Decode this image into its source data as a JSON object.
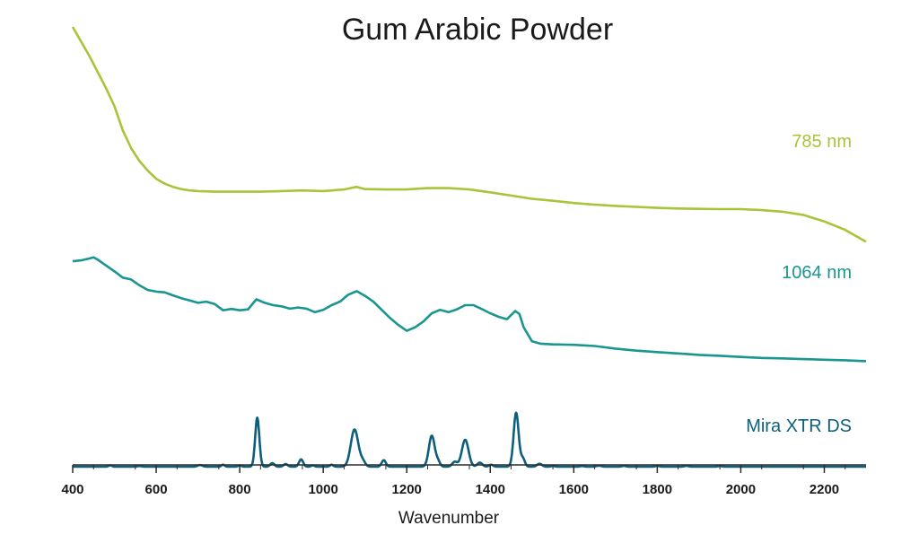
{
  "chart_data": {
    "type": "line",
    "title": "Gum Arabic Powder",
    "xlabel": "Wavenumber",
    "ylabel": "",
    "xlim": [
      400,
      2300
    ],
    "xticks": [
      400,
      600,
      800,
      1000,
      1200,
      1400,
      1600,
      1800,
      2000,
      2200
    ],
    "y_axis_shown": false,
    "grid": false,
    "legend": "inline-right",
    "series": [
      {
        "name": "785 nm",
        "color": "#a8c43a",
        "x": [
          400,
          420,
          440,
          460,
          480,
          500,
          520,
          540,
          560,
          580,
          600,
          620,
          640,
          660,
          680,
          700,
          720,
          740,
          760,
          780,
          800,
          850,
          900,
          950,
          1000,
          1050,
          1080,
          1100,
          1150,
          1200,
          1250,
          1300,
          1350,
          1400,
          1450,
          1500,
          1550,
          1600,
          1650,
          1700,
          1750,
          1800,
          1850,
          1900,
          1950,
          2000,
          2050,
          2100,
          2150,
          2200,
          2250,
          2300
        ],
        "y": [
          1.0,
          0.955,
          0.91,
          0.86,
          0.81,
          0.755,
          0.68,
          0.625,
          0.585,
          0.555,
          0.53,
          0.515,
          0.505,
          0.498,
          0.494,
          0.492,
          0.491,
          0.49,
          0.49,
          0.49,
          0.49,
          0.49,
          0.492,
          0.494,
          0.492,
          0.497,
          0.505,
          0.498,
          0.497,
          0.497,
          0.501,
          0.501,
          0.497,
          0.488,
          0.478,
          0.468,
          0.462,
          0.455,
          0.45,
          0.446,
          0.443,
          0.44,
          0.438,
          0.437,
          0.436,
          0.436,
          0.433,
          0.428,
          0.418,
          0.398,
          0.372,
          0.335
        ]
      },
      {
        "name": "1064 nm",
        "color": "#1a9590",
        "x": [
          400,
          420,
          440,
          450,
          460,
          480,
          500,
          520,
          540,
          560,
          580,
          600,
          620,
          640,
          660,
          680,
          700,
          720,
          740,
          760,
          780,
          800,
          820,
          840,
          860,
          880,
          900,
          920,
          940,
          960,
          980,
          1000,
          1020,
          1040,
          1060,
          1080,
          1100,
          1120,
          1140,
          1160,
          1180,
          1200,
          1220,
          1240,
          1260,
          1280,
          1300,
          1320,
          1340,
          1360,
          1380,
          1400,
          1420,
          1440,
          1460,
          1470,
          1480,
          1500,
          1520,
          1550,
          1600,
          1650,
          1700,
          1750,
          1800,
          1850,
          1900,
          1950,
          2000,
          2050,
          2100,
          2150,
          2200,
          2250,
          2300
        ],
        "y": [
          0.488,
          0.492,
          0.5,
          0.505,
          0.495,
          0.47,
          0.445,
          0.418,
          0.41,
          0.385,
          0.365,
          0.358,
          0.355,
          0.342,
          0.33,
          0.32,
          0.31,
          0.315,
          0.305,
          0.278,
          0.284,
          0.278,
          0.282,
          0.325,
          0.31,
          0.3,
          0.295,
          0.285,
          0.29,
          0.285,
          0.27,
          0.28,
          0.3,
          0.315,
          0.345,
          0.36,
          0.34,
          0.315,
          0.28,
          0.245,
          0.215,
          0.19,
          0.205,
          0.23,
          0.265,
          0.28,
          0.27,
          0.282,
          0.3,
          0.3,
          0.283,
          0.265,
          0.25,
          0.24,
          0.275,
          0.262,
          0.205,
          0.145,
          0.135,
          0.132,
          0.13,
          0.125,
          0.114,
          0.105,
          0.099,
          0.093,
          0.087,
          0.083,
          0.078,
          0.074,
          0.072,
          0.069,
          0.066,
          0.064,
          0.06
        ]
      },
      {
        "name": "Mira XTR DS",
        "color": "#0d5f7c",
        "peaks": [
          {
            "center": 490,
            "height": 0.008,
            "width": 4
          },
          {
            "center": 560,
            "height": 0.004,
            "width": 5
          },
          {
            "center": 705,
            "height": 0.01,
            "width": 6
          },
          {
            "center": 760,
            "height": 0.012,
            "width": 4
          },
          {
            "center": 800,
            "height": 0.008,
            "width": 4
          },
          {
            "center": 842,
            "height": 0.3,
            "width": 5
          },
          {
            "center": 878,
            "height": 0.022,
            "width": 5
          },
          {
            "center": 910,
            "height": 0.016,
            "width": 5
          },
          {
            "center": 947,
            "height": 0.045,
            "width": 5
          },
          {
            "center": 975,
            "height": 0.008,
            "width": 4
          },
          {
            "center": 1020,
            "height": 0.012,
            "width": 4
          },
          {
            "center": 1075,
            "height": 0.228,
            "width": 9
          },
          {
            "center": 1095,
            "height": 0.03,
            "width": 6
          },
          {
            "center": 1145,
            "height": 0.04,
            "width": 5
          },
          {
            "center": 1260,
            "height": 0.19,
            "width": 7
          },
          {
            "center": 1275,
            "height": 0.03,
            "width": 5
          },
          {
            "center": 1315,
            "height": 0.03,
            "width": 6
          },
          {
            "center": 1340,
            "height": 0.165,
            "width": 8
          },
          {
            "center": 1375,
            "height": 0.025,
            "width": 6
          },
          {
            "center": 1402,
            "height": 0.012,
            "width": 5
          },
          {
            "center": 1462,
            "height": 0.33,
            "width": 6
          },
          {
            "center": 1478,
            "height": 0.05,
            "width": 5
          },
          {
            "center": 1518,
            "height": 0.018,
            "width": 6
          },
          {
            "center": 1550,
            "height": 0.004,
            "width": 5
          },
          {
            "center": 1620,
            "height": 0.004,
            "width": 5
          },
          {
            "center": 1660,
            "height": 0.006,
            "width": 6
          },
          {
            "center": 1720,
            "height": 0.005,
            "width": 5
          },
          {
            "center": 1800,
            "height": 0.005,
            "width": 5
          },
          {
            "center": 1870,
            "height": 0.005,
            "width": 5
          },
          {
            "center": 1950,
            "height": 0.004,
            "width": 5
          }
        ]
      }
    ]
  }
}
